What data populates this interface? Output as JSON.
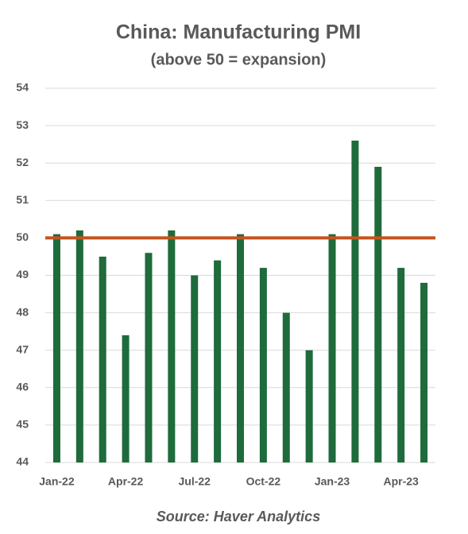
{
  "chart_data": {
    "type": "bar",
    "title": "China: Manufacturing PMI",
    "subtitle": "(above 50 = expansion)",
    "categories": [
      "Jan-22",
      null,
      null,
      "Apr-22",
      null,
      null,
      "Jul-22",
      null,
      null,
      "Oct-22",
      null,
      null,
      "Jan-23",
      null,
      null,
      "Apr-23",
      null
    ],
    "values": [
      50.1,
      50.2,
      49.5,
      47.4,
      49.6,
      50.2,
      49.0,
      49.4,
      50.1,
      49.2,
      48.0,
      47.0,
      50.1,
      52.6,
      51.9,
      49.2,
      48.8
    ],
    "color": "#1e6b3c",
    "ylim": [
      44,
      54
    ],
    "yticks": [
      44,
      45,
      46,
      47,
      48,
      49,
      50,
      51,
      52,
      53,
      54
    ],
    "grid": true,
    "reference_line": {
      "value": 50,
      "color": "#c5541c"
    },
    "source": "Source: Haver Analytics"
  }
}
